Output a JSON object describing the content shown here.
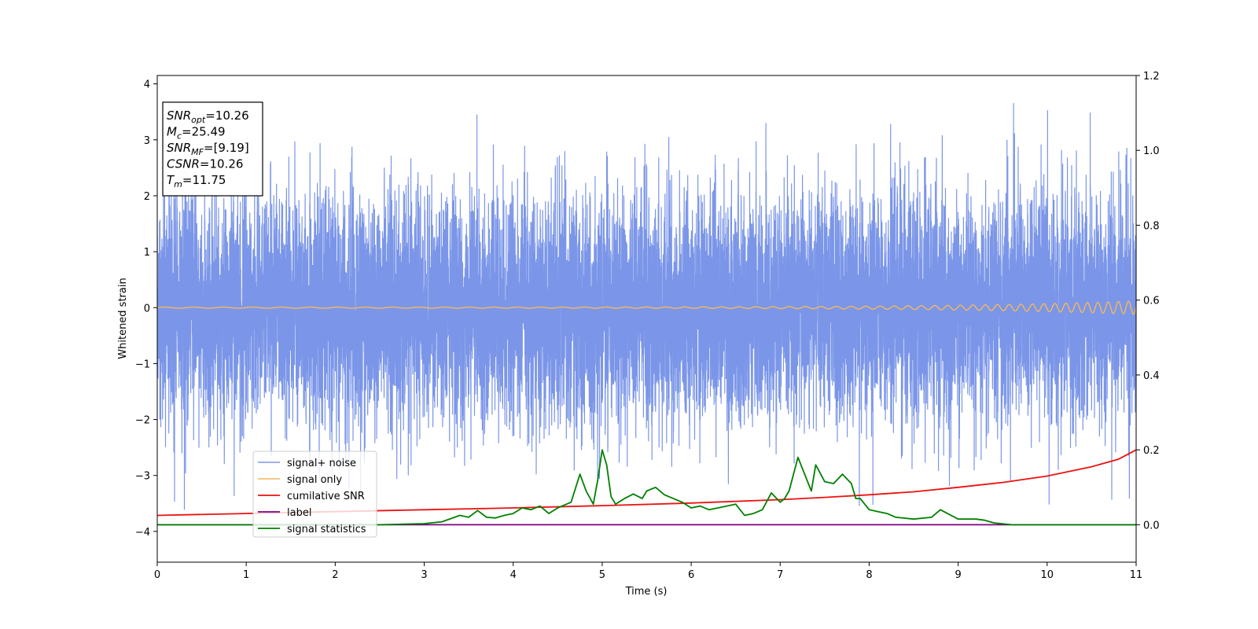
{
  "chart_data": {
    "type": "line",
    "xlabel": "Time (s)",
    "ylabel": "Whitened strain",
    "xlim": [
      0,
      11
    ],
    "ylim": [
      -4.55,
      4.15
    ],
    "y2lim": [
      -0.1,
      1.2
    ],
    "x_ticks": [
      "0",
      "1",
      "2",
      "3",
      "4",
      "5",
      "6",
      "7",
      "8",
      "9",
      "10",
      "11"
    ],
    "y_ticks": [
      "4",
      "3",
      "2",
      "1",
      "0",
      "−1",
      "−2",
      "−3",
      "−4"
    ],
    "y2_ticks": [
      "1.2",
      "1.0",
      "0.8",
      "0.6",
      "0.4",
      "0.2",
      "0.0"
    ],
    "grid": false,
    "legend_position": "lower-left",
    "annotation": [
      {
        "sym": "SNR",
        "sub": "opt",
        "val": "=10.26"
      },
      {
        "sym": "M",
        "sub": "c",
        "val": "=25.49"
      },
      {
        "sym": "SNR",
        "sub": "MF",
        "val": "=[9.19]"
      },
      {
        "sym": "CSNR",
        "sub": "",
        "val": "=10.26"
      },
      {
        "sym": "T",
        "sub": "m",
        "val": "=11.75"
      }
    ],
    "series": [
      {
        "name": "signal+ noise",
        "color": "#7b96e8",
        "axis": "left",
        "style": "noise",
        "noise_amplitude_range": [
          -4.15,
          3.75
        ],
        "noise_std": 1.0,
        "n_samples": 11000
      },
      {
        "name": "signal only",
        "color": "#f5b75a",
        "axis": "left",
        "style": "chirp",
        "amplitude_start": 0.01,
        "amplitude_end": 0.12,
        "freq_start": 3,
        "freq_end": 9
      },
      {
        "name": "cumilative SNR",
        "color": "#ee1111",
        "axis": "right",
        "x": [
          0,
          1,
          2,
          3,
          4,
          5,
          6,
          7,
          7.5,
          8,
          8.5,
          9,
          9.5,
          10,
          10.5,
          10.8,
          11
        ],
        "y": [
          0.025,
          0.03,
          0.035,
          0.04,
          0.045,
          0.051,
          0.058,
          0.067,
          0.073,
          0.08,
          0.088,
          0.1,
          0.113,
          0.13,
          0.155,
          0.175,
          0.2
        ]
      },
      {
        "name": "label",
        "color": "#800080",
        "axis": "right",
        "x": [
          0,
          11
        ],
        "y": [
          0.0,
          0.0
        ]
      },
      {
        "name": "signal statistics",
        "color": "#008000",
        "axis": "right",
        "x": [
          0,
          1.0,
          2.0,
          2.5,
          3.0,
          3.2,
          3.4,
          3.5,
          3.6,
          3.7,
          3.8,
          3.9,
          4.0,
          4.1,
          4.2,
          4.3,
          4.4,
          4.5,
          4.6,
          4.65,
          4.75,
          4.82,
          4.9,
          4.95,
          5.0,
          5.05,
          5.1,
          5.15,
          5.25,
          5.35,
          5.45,
          5.5,
          5.6,
          5.7,
          5.8,
          5.9,
          6.0,
          6.1,
          6.2,
          6.3,
          6.4,
          6.5,
          6.6,
          6.7,
          6.8,
          6.9,
          7.0,
          7.05,
          7.1,
          7.2,
          7.3,
          7.35,
          7.4,
          7.5,
          7.6,
          7.7,
          7.8,
          7.85,
          7.9,
          8.0,
          8.1,
          8.2,
          8.3,
          8.5,
          8.7,
          8.8,
          9.0,
          9.2,
          9.3,
          9.4,
          9.6,
          9.8,
          10.0,
          11.0
        ],
        "y": [
          0.0,
          0.0,
          0.0,
          0.0,
          0.003,
          0.008,
          0.025,
          0.02,
          0.038,
          0.02,
          0.018,
          0.025,
          0.03,
          0.045,
          0.04,
          0.05,
          0.03,
          0.045,
          0.055,
          0.06,
          0.135,
          0.09,
          0.055,
          0.12,
          0.2,
          0.16,
          0.075,
          0.055,
          0.07,
          0.082,
          0.07,
          0.09,
          0.1,
          0.08,
          0.07,
          0.06,
          0.045,
          0.05,
          0.04,
          0.045,
          0.05,
          0.055,
          0.025,
          0.03,
          0.04,
          0.085,
          0.06,
          0.07,
          0.09,
          0.18,
          0.12,
          0.09,
          0.16,
          0.115,
          0.11,
          0.135,
          0.11,
          0.07,
          0.07,
          0.04,
          0.035,
          0.03,
          0.02,
          0.015,
          0.02,
          0.04,
          0.015,
          0.015,
          0.012,
          0.005,
          0.0,
          0.0,
          0.0,
          0.0
        ]
      }
    ]
  }
}
